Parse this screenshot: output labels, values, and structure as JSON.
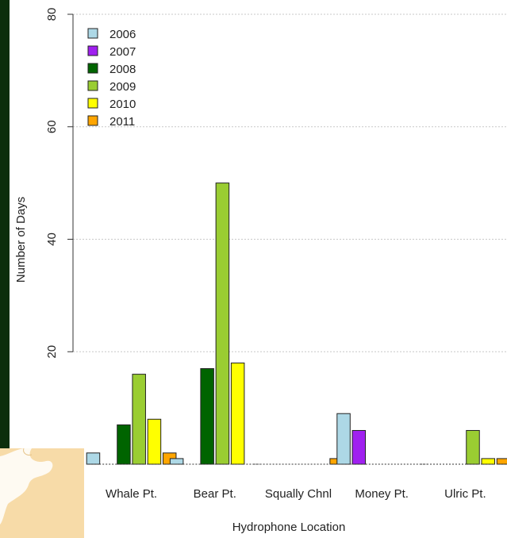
{
  "chart_data": {
    "type": "bar",
    "xlabel": "Hydrophone Location",
    "ylabel": "Number of Days",
    "ylim": [
      0,
      80
    ],
    "yticks": [
      20,
      40,
      60,
      80
    ],
    "grid": true,
    "legend_position": "top-left",
    "categories": [
      "Whale Pt.",
      "Bear Pt.",
      "Squally Chnl",
      "Money Pt.",
      "Ulric Pt."
    ],
    "series": [
      {
        "name": "2006",
        "color": "#add8e6",
        "values": [
          2,
          1,
          0,
          9,
          0
        ]
      },
      {
        "name": "2007",
        "color": "#a020f0",
        "values": [
          0,
          0,
          0,
          6,
          0
        ]
      },
      {
        "name": "2008",
        "color": "#006400",
        "values": [
          7,
          17,
          0,
          0,
          0
        ]
      },
      {
        "name": "2009",
        "color": "#9acd32",
        "values": [
          16,
          50,
          0,
          0,
          6
        ]
      },
      {
        "name": "2010",
        "color": "#ffff00",
        "values": [
          8,
          18,
          0,
          0,
          1
        ]
      },
      {
        "name": "2011",
        "color": "#ffa500",
        "values": [
          2,
          0,
          1,
          0,
          1
        ]
      }
    ]
  }
}
